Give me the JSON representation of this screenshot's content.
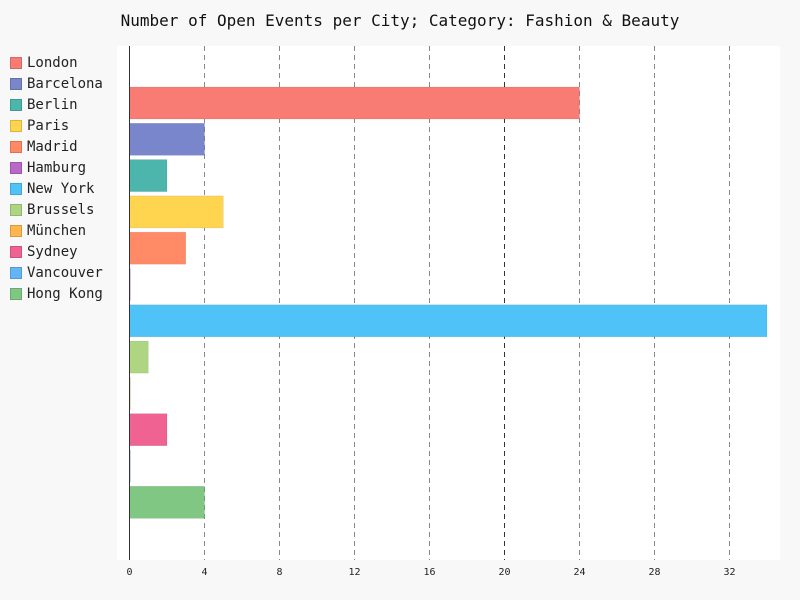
{
  "chart_data": {
    "type": "bar",
    "orientation": "horizontal",
    "title": "Number of Open Events per City; Category: Fashion & Beauty",
    "xlabel": "",
    "ylabel": "",
    "xlim": [
      0,
      34
    ],
    "x_ticks": [
      "0",
      "4",
      "8",
      "12",
      "16",
      "20",
      "24",
      "28",
      "32"
    ],
    "grid": "vertical dashed",
    "legend_position": "left",
    "series": [
      {
        "name": "London",
        "value": 24,
        "color": "#f87c74"
      },
      {
        "name": "Barcelona",
        "value": 4,
        "color": "#7986cb"
      },
      {
        "name": "Berlin",
        "value": 2,
        "color": "#4db6ac"
      },
      {
        "name": "Paris",
        "value": 5,
        "color": "#ffd54f"
      },
      {
        "name": "Madrid",
        "value": 3,
        "color": "#ff8a65"
      },
      {
        "name": "Hamburg",
        "value": 0,
        "color": "#ba68c8"
      },
      {
        "name": "New York",
        "value": 34,
        "color": "#4fc3f7"
      },
      {
        "name": "Brussels",
        "value": 1,
        "color": "#aed581"
      },
      {
        "name": "München",
        "value": 0,
        "color": "#ffb74d"
      },
      {
        "name": "Sydney",
        "value": 2,
        "color": "#f06292"
      },
      {
        "name": "Vancouver",
        "value": 0,
        "color": "#64b5f6"
      },
      {
        "name": "Hong Kong",
        "value": 4,
        "color": "#81c784"
      }
    ]
  }
}
